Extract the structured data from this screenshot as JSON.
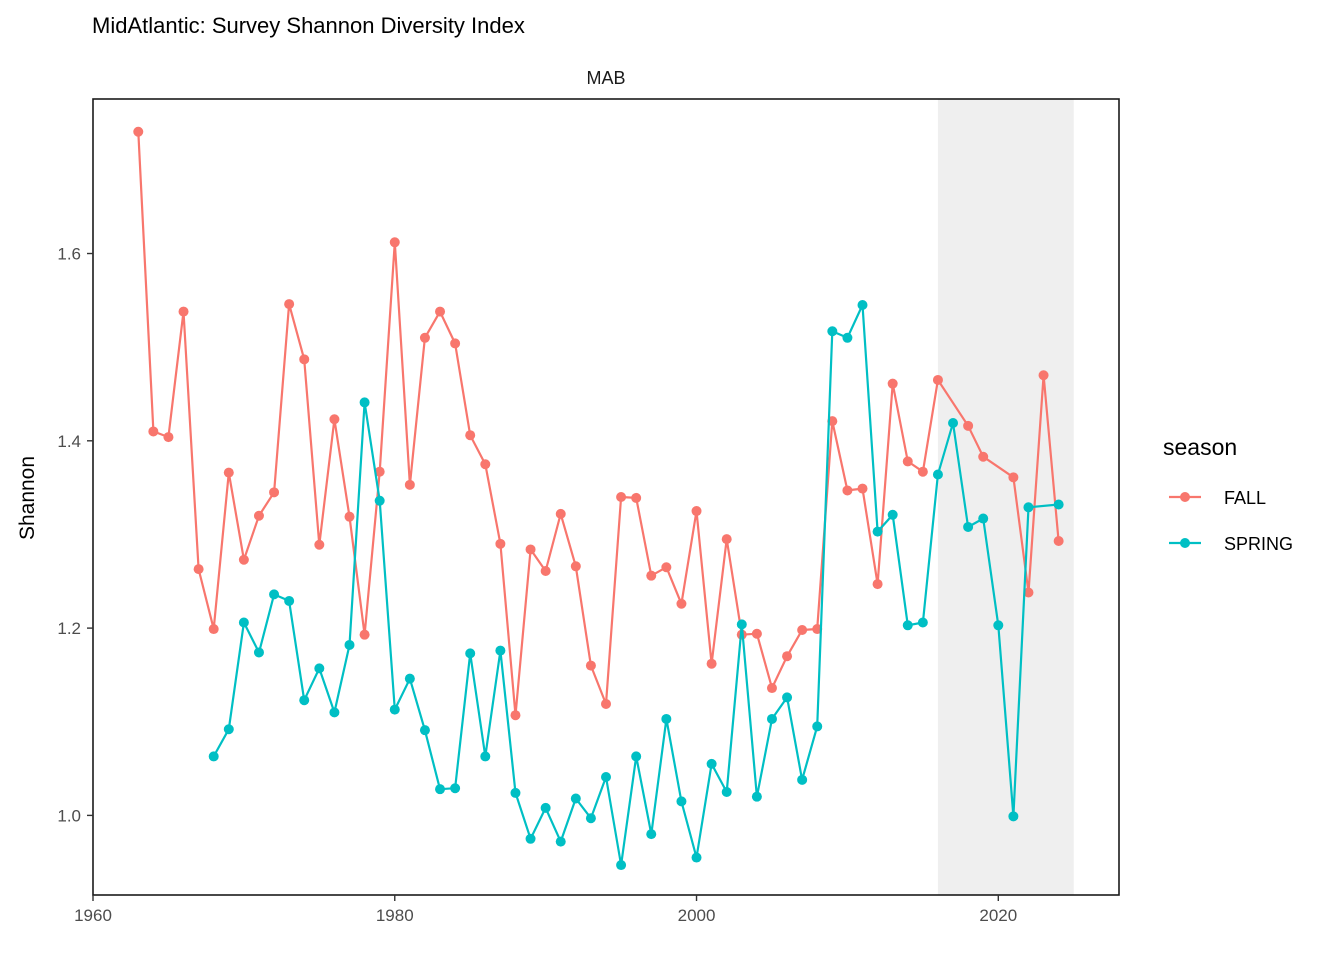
{
  "chart_data": {
    "type": "line",
    "title": "MidAtlantic: Survey Shannon Diversity Index",
    "facet_label": "MAB",
    "xlabel": "",
    "ylabel": "Shannon",
    "xlim": [
      1960,
      2028
    ],
    "ylim": [
      0.915,
      1.765
    ],
    "x_ticks": [
      1960,
      1980,
      2000,
      2020
    ],
    "y_ticks": [
      1.0,
      1.2,
      1.4,
      1.6
    ],
    "y_tick_labels": [
      "1.0",
      "1.2",
      "1.4",
      "1.6"
    ],
    "highlight_range": [
      2016,
      2025
    ],
    "highlight_color": "#efefef",
    "grid": false,
    "legend": {
      "title": "season",
      "position": "right",
      "entries": [
        "FALL",
        "SPRING"
      ]
    },
    "series": [
      {
        "name": "FALL",
        "color": "#F8766D",
        "x": [
          1963,
          1964,
          1965,
          1966,
          1967,
          1968,
          1969,
          1970,
          1971,
          1972,
          1973,
          1974,
          1975,
          1976,
          1977,
          1978,
          1979,
          1980,
          1981,
          1982,
          1983,
          1984,
          1985,
          1986,
          1987,
          1988,
          1989,
          1990,
          1991,
          1992,
          1993,
          1994,
          1995,
          1996,
          1997,
          1998,
          1999,
          2000,
          2001,
          2002,
          2003,
          2004,
          2005,
          2006,
          2007,
          2008,
          2009,
          2010,
          2011,
          2012,
          2013,
          2014,
          2015,
          2016,
          2018,
          2019,
          2021,
          2022,
          2023,
          2024
        ],
        "y": [
          1.73,
          1.41,
          1.404,
          1.538,
          1.263,
          1.199,
          1.366,
          1.273,
          1.32,
          1.345,
          1.546,
          1.487,
          1.289,
          1.423,
          1.319,
          1.193,
          1.367,
          1.612,
          1.353,
          1.51,
          1.538,
          1.504,
          1.406,
          1.375,
          1.29,
          1.107,
          1.284,
          1.261,
          1.322,
          1.266,
          1.16,
          1.119,
          1.34,
          1.339,
          1.256,
          1.265,
          1.226,
          1.325,
          1.162,
          1.295,
          1.193,
          1.194,
          1.136,
          1.17,
          1.198,
          1.199,
          1.421,
          1.347,
          1.349,
          1.247,
          1.461,
          1.378,
          1.367,
          1.465,
          1.416,
          1.383,
          1.361,
          1.238,
          1.47,
          1.293
        ]
      },
      {
        "name": "SPRING",
        "color": "#00BFC4",
        "x": [
          1968,
          1969,
          1970,
          1971,
          1972,
          1973,
          1974,
          1975,
          1976,
          1977,
          1978,
          1979,
          1980,
          1981,
          1982,
          1983,
          1984,
          1985,
          1986,
          1987,
          1988,
          1989,
          1990,
          1991,
          1992,
          1993,
          1994,
          1995,
          1996,
          1997,
          1998,
          1999,
          2000,
          2001,
          2002,
          2003,
          2004,
          2005,
          2006,
          2007,
          2008,
          2009,
          2010,
          2011,
          2012,
          2013,
          2014,
          2015,
          2016,
          2017,
          2018,
          2019,
          2020,
          2021,
          2022,
          2024
        ],
        "y": [
          1.063,
          1.092,
          1.206,
          1.174,
          1.236,
          1.229,
          1.123,
          1.157,
          1.11,
          1.182,
          1.441,
          1.336,
          1.113,
          1.146,
          1.091,
          1.028,
          1.029,
          1.173,
          1.063,
          1.176,
          1.024,
          0.975,
          1.008,
          0.972,
          1.018,
          0.997,
          1.041,
          0.947,
          1.063,
          0.98,
          1.103,
          1.015,
          0.955,
          1.055,
          1.025,
          1.204,
          1.02,
          1.103,
          1.126,
          1.038,
          1.095,
          1.517,
          1.51,
          1.545,
          1.303,
          1.321,
          1.203,
          1.206,
          1.364,
          1.419,
          1.308,
          1.317,
          1.203,
          0.999,
          1.329,
          1.332
        ]
      }
    ]
  }
}
